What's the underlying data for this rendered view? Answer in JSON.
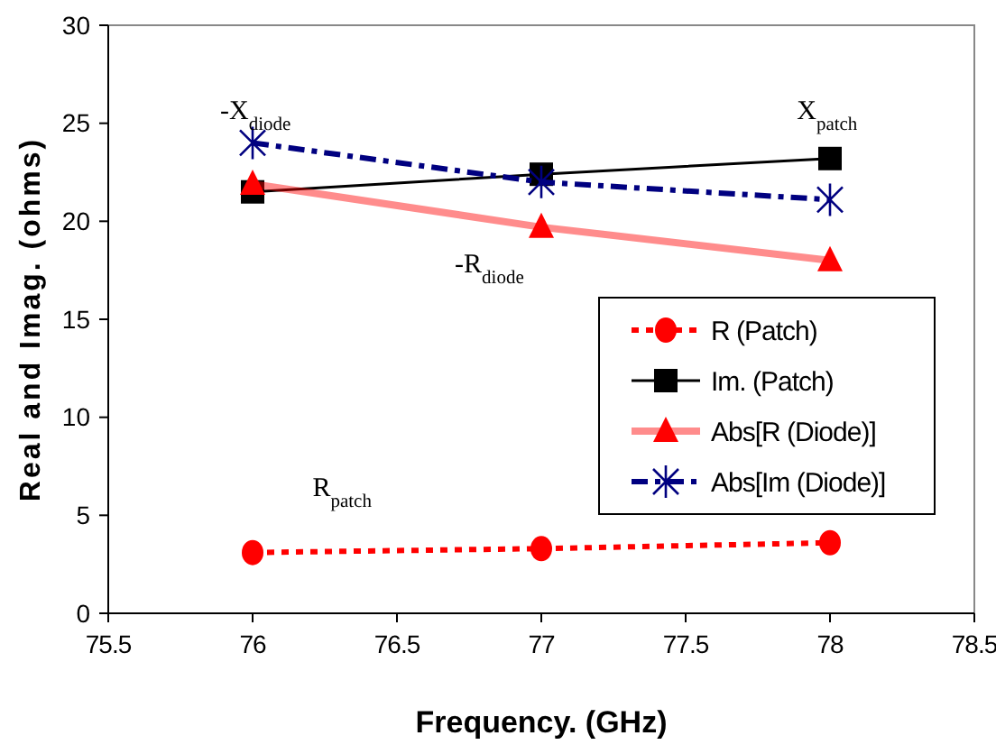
{
  "chart_data": {
    "type": "line",
    "xlabel": "Frequency. (GHz)",
    "ylabel": "Real and Imag. (ohms)",
    "x": [
      76,
      77,
      78
    ],
    "xlim": [
      75.5,
      78.5
    ],
    "xticks": [
      75.5,
      76,
      76.5,
      77,
      77.5,
      78,
      78.5
    ],
    "ylim": [
      0,
      30
    ],
    "yticks": [
      0,
      5,
      10,
      15,
      20,
      25,
      30
    ],
    "grid": false,
    "legend": "right",
    "series": [
      {
        "name": "R (Patch)",
        "color": "#ff0000",
        "values": [
          3.1,
          3.3,
          3.6
        ],
        "marker": "circle",
        "line_style": "dotted"
      },
      {
        "name": "Im. (Patch)",
        "color": "#000000",
        "values": [
          21.5,
          22.4,
          23.2
        ],
        "marker": "square",
        "line_style": "solid"
      },
      {
        "name": "Abs[R (Diode)]",
        "color": "#ff0000",
        "values": [
          21.9,
          19.7,
          18.0
        ],
        "marker": "triangle",
        "line_style": "solid"
      },
      {
        "name": "Abs[Im (Diode)]",
        "color": "#000080",
        "values": [
          24.0,
          22.0,
          21.1
        ],
        "marker": "cross",
        "line_style": "dashed"
      }
    ],
    "annotations": [
      "-X$_{diode}$",
      "X$_{patch}$",
      "-R$_{diode}$",
      "R$_{patch}$"
    ]
  }
}
